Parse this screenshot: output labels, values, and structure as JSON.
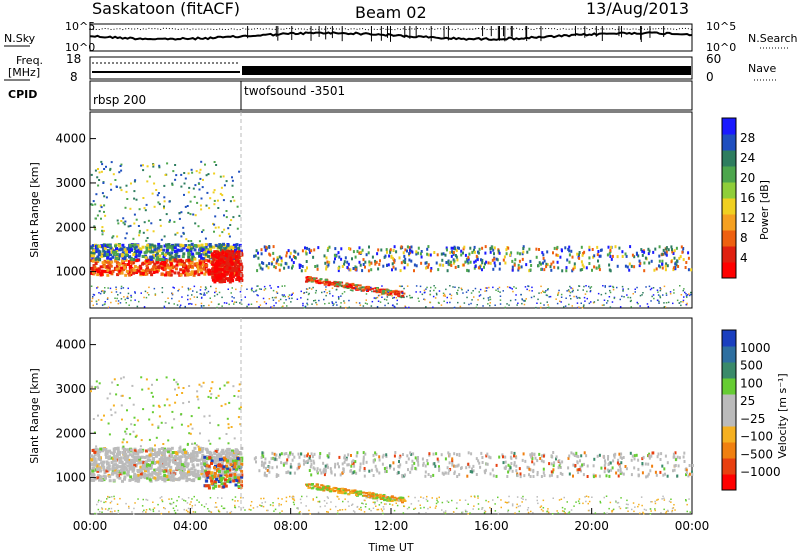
{
  "header": {
    "station": "Saskatoon (fitACF)",
    "beam": "Beam 02",
    "date": "13/Aug/2013"
  },
  "status_panels": {
    "nsky_label": "N.Sky",
    "nsearch_label": "N.Search",
    "noise_ticks_left": [
      "10^5",
      "10^0"
    ],
    "noise_ticks_right": [
      "10^5",
      "10^0"
    ],
    "freq_label_line1": "Freq.",
    "freq_label_line2": "[MHz]",
    "freq_ticks": [
      "18",
      "8"
    ],
    "nave_label": "Nave",
    "nave_ticks": [
      "60",
      "0"
    ],
    "cpid_label": "CPID",
    "cpid_segments": [
      {
        "name": "rbsp 200",
        "start_hour": 0,
        "end_hour": 6
      },
      {
        "name": "twofsound -3501",
        "start_hour": 6,
        "end_hour": 24
      }
    ]
  },
  "chart_data": [
    {
      "type": "heatmap",
      "panel": "power",
      "ylabel": "Slant Range [km]",
      "xlabel": "",
      "yticks": [
        1000,
        2000,
        3000,
        4000
      ],
      "ylim": [
        180,
        4600
      ],
      "xlim_hours": [
        0,
        24
      ],
      "colorbar": {
        "label": "Power [dB]",
        "ticks": [
          "28",
          "24",
          "20",
          "16",
          "12",
          "8",
          "4"
        ],
        "colors": [
          "#1a1aff",
          "#1f4fbf",
          "#2e7d5f",
          "#4da64d",
          "#8fce3a",
          "#f0d020",
          "#f5a020",
          "#ee6010",
          "#e02010",
          "#ff0000"
        ]
      },
      "features": [
        {
          "desc": "band",
          "start_hour": 0,
          "end_hour": 6,
          "range_km": [
            900,
            1700
          ]
        },
        {
          "desc": "band",
          "start_hour": 6.5,
          "end_hour": 24,
          "range_km": [
            1100,
            1600
          ]
        },
        {
          "desc": "arc",
          "start_hour": 8.5,
          "end_hour": 12.5,
          "range_km": [
            400,
            700
          ]
        }
      ]
    },
    {
      "type": "heatmap",
      "panel": "velocity",
      "ylabel": "Slant Range [km]",
      "xlabel": "Time UT",
      "yticks": [
        1000,
        2000,
        3000,
        4000
      ],
      "ylim": [
        180,
        4600
      ],
      "xlim_hours": [
        0,
        24
      ],
      "xtick_labels": [
        "00:00",
        "04:00",
        "08:00",
        "12:00",
        "16:00",
        "20:00",
        "00:00"
      ],
      "colorbar": {
        "label": "Velocity [m s⁻¹]",
        "ticks": [
          "1000",
          "500",
          "100",
          "25",
          "−25",
          "−100",
          "−500",
          "−1000"
        ],
        "colors": [
          "#1a3fbf",
          "#2e6fa0",
          "#3a8a6a",
          "#66cc33",
          "#bbbbbb",
          "#bbbbbb",
          "#f5b020",
          "#f08010",
          "#e84010",
          "#ff0000"
        ]
      },
      "features": [
        {
          "desc": "ground scatter",
          "start_hour": 0,
          "end_hour": 6,
          "range_km": [
            900,
            1700
          ],
          "velocity": "low"
        },
        {
          "desc": "band",
          "start_hour": 6.5,
          "end_hour": 24,
          "range_km": [
            1100,
            1600
          ],
          "velocity": "low"
        }
      ]
    }
  ]
}
